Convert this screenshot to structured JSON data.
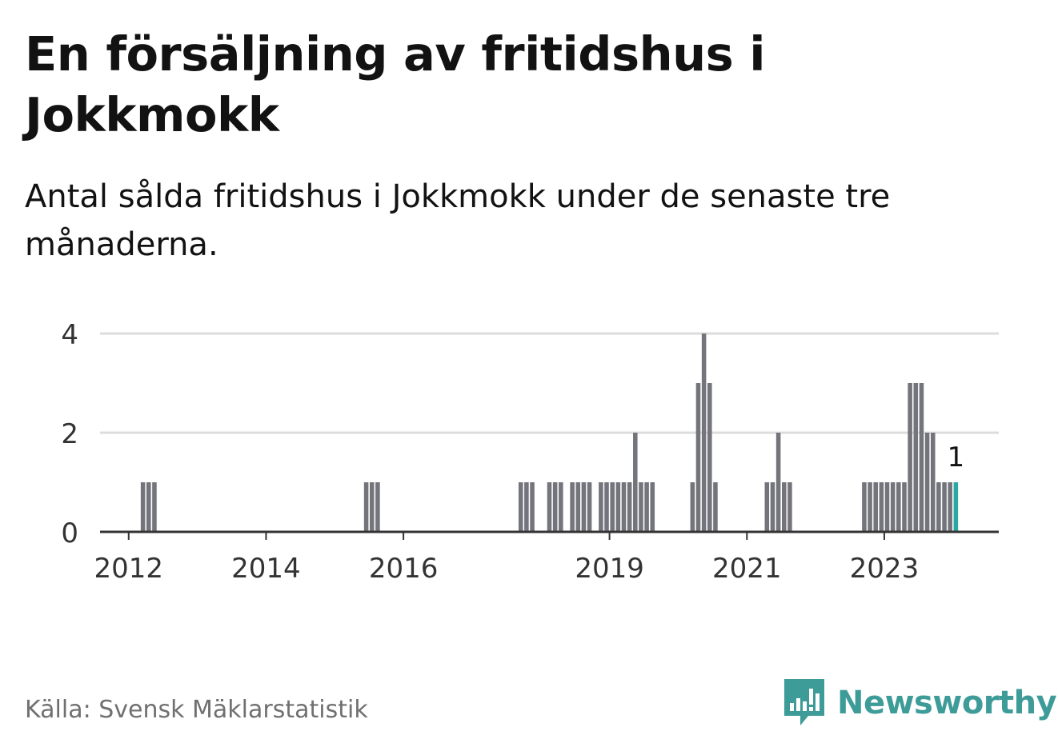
{
  "title": "En försäljning av fritidshus i Jokkmokk",
  "subtitle": "Antal sålda fritidshus i Jokkmokk under de senaste tre månaderna.",
  "source": "Källa: Svensk Mäklarstatistik",
  "brand": {
    "name": "Newsworthy",
    "icon": "newsworthy-logo-icon",
    "color": "#3d9b98"
  },
  "chart_data": {
    "type": "bar",
    "xlabel": "",
    "ylabel": "",
    "ylim": [
      0,
      4
    ],
    "yticks": [
      0,
      2,
      4
    ],
    "xlim": [
      "2011-08",
      "2024-09"
    ],
    "xticks": [
      "2012",
      "2014",
      "2016",
      "2019",
      "2021",
      "2023"
    ],
    "grid": true,
    "bar_color": "#74747c",
    "highlight_color": "#2aa9a3",
    "x": [
      "2012-03",
      "2012-04",
      "2012-05",
      "2015-06",
      "2015-07",
      "2015-08",
      "2017-09",
      "2017-10",
      "2017-11",
      "2018-02",
      "2018-03",
      "2018-04",
      "2018-06",
      "2018-07",
      "2018-08",
      "2018-09",
      "2018-11",
      "2018-12",
      "2019-01",
      "2019-02",
      "2019-03",
      "2019-04",
      "2019-05",
      "2019-06",
      "2019-07",
      "2019-08",
      "2020-03",
      "2020-04",
      "2020-05",
      "2020-06",
      "2020-07",
      "2021-04",
      "2021-05",
      "2021-06",
      "2021-07",
      "2021-08",
      "2022-09",
      "2022-10",
      "2022-11",
      "2022-12",
      "2023-01",
      "2023-02",
      "2023-03",
      "2023-04",
      "2023-05",
      "2023-06",
      "2023-07",
      "2023-08",
      "2023-09",
      "2023-10",
      "2023-11",
      "2023-12",
      "2024-01"
    ],
    "values": [
      1,
      1,
      1,
      1,
      1,
      1,
      1,
      1,
      1,
      1,
      1,
      1,
      1,
      1,
      1,
      1,
      1,
      1,
      1,
      1,
      1,
      1,
      2,
      1,
      1,
      1,
      1,
      3,
      4,
      3,
      1,
      1,
      1,
      2,
      1,
      1,
      1,
      1,
      1,
      1,
      1,
      1,
      1,
      1,
      3,
      3,
      3,
      2,
      2,
      1,
      1,
      1,
      1
    ],
    "highlight_index": 52,
    "annotations": [
      {
        "x": "2024-01",
        "text": "1"
      }
    ]
  }
}
